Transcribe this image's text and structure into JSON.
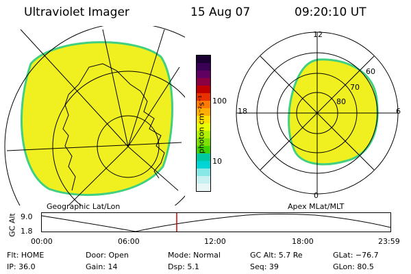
{
  "header": {
    "instrument": "Ultraviolet Imager",
    "date": "15 Aug 07",
    "time": "09:20:10 UT"
  },
  "left_panel": {
    "label": "Geographic Lat/Lon"
  },
  "right_panel": {
    "label": "Apex MLat/MLT",
    "hours": {
      "top": "12",
      "bottom": "0",
      "left": "18",
      "right": "6"
    },
    "lat_labels": [
      "60",
      "70",
      "80"
    ]
  },
  "colorbar": {
    "unit": "photon cm⁻²s⁻¹",
    "ticks": [
      "100",
      "10"
    ],
    "colors": [
      "#1a0033",
      "#3a0055",
      "#600060",
      "#8a0040",
      "#c00000",
      "#e83000",
      "#ff7a00",
      "#ffae00",
      "#ffe000",
      "#e8ff00",
      "#b0f000",
      "#7ee000",
      "#3ed400",
      "#00c8a0",
      "#00d4d4",
      "#88e8e8",
      "#c8f0f0",
      "#e8f6f6"
    ]
  },
  "altitude_plot": {
    "ylabel": "GC Alt",
    "yticks": [
      "9.0",
      "1.8"
    ],
    "xticks": [
      "00:00",
      "06:00",
      "12:00",
      "18:00",
      "23:59"
    ],
    "marker_color": "#cc0000"
  },
  "info": {
    "flt": "Flt: HOME",
    "ip": "IP: 36.0",
    "door": "Door: Open",
    "gain": "Gain: 14",
    "mode": "Mode: Normal",
    "dsp": "Dsp:    5.1",
    "gcalt": "GC Alt: 5.7 Re",
    "seq": "Seq: 39",
    "glat": "GLat: −76.7",
    "glon": "GLon:  80.5"
  },
  "colors": {
    "image_fill": "#f0f020",
    "image_edge": "#40d080"
  }
}
